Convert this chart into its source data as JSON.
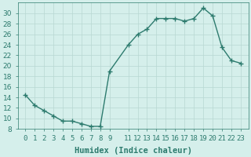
{
  "x": [
    0,
    1,
    2,
    3,
    4,
    5,
    6,
    7,
    8,
    9,
    11,
    12,
    13,
    14,
    15,
    16,
    17,
    18,
    19,
    20,
    21,
    22,
    23
  ],
  "y": [
    14.5,
    12.5,
    11.5,
    10.5,
    9.5,
    9.5,
    9.0,
    8.5,
    8.5,
    19.0,
    24.0,
    26.0,
    27.0,
    29.0,
    29.0,
    29.0,
    28.5,
    29.0,
    31.0,
    29.5,
    23.5,
    21.0,
    20.5
  ],
  "line_color": "#2d7b6e",
  "marker_color": "#2d7b6e",
  "bg_color": "#d5efeb",
  "grid_color": "#b8d8d2",
  "xlabel": "Humidex (Indice chaleur)",
  "ylim": [
    8,
    32
  ],
  "yticks": [
    8,
    10,
    12,
    14,
    16,
    18,
    20,
    22,
    24,
    26,
    28,
    30
  ],
  "xlim": [
    -0.8,
    23.8
  ],
  "xlabel_fontsize": 7.5,
  "tick_fontsize": 6.5,
  "line_width": 1.0,
  "marker_size": 2.5
}
